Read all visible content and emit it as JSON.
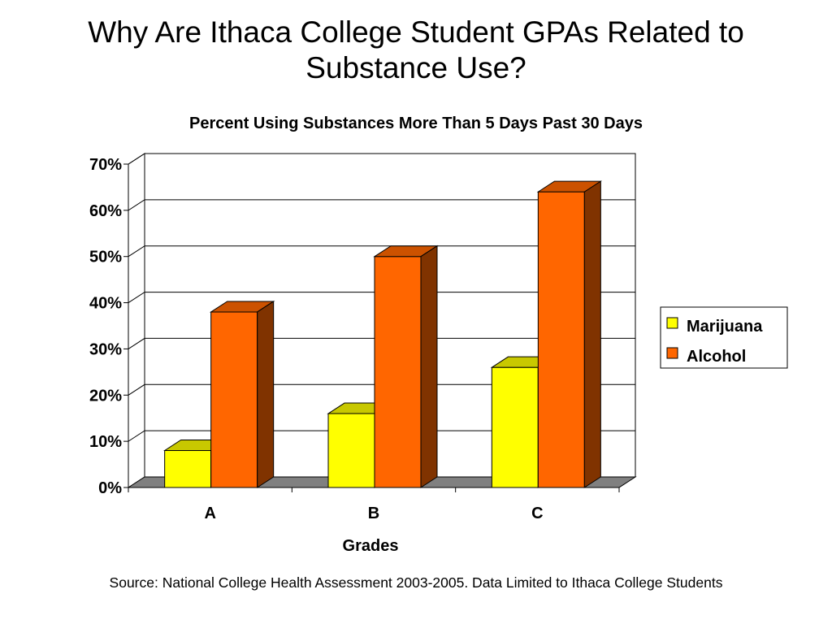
{
  "slide": {
    "title_line1": "Why Are Ithaca College Student GPAs Related to",
    "title_line2": "Substance Use?",
    "source": "Source: National College Health Assessment 2003-2005.  Data Limited to Ithaca College Students"
  },
  "colors": {
    "marijuana_front": "#ffff00",
    "marijuana_top": "#c8c800",
    "marijuana_side": "#9a9a00",
    "alcohol_front": "#ff6600",
    "alcohol_top": "#cc5200",
    "alcohol_side": "#803300",
    "floor": "#808080",
    "wall": "#ffffff"
  },
  "chart_data": {
    "type": "bar",
    "title": "Percent Using Substances More Than 5 Days Past 30 Days",
    "xlabel": "Grades",
    "ylabel": "",
    "categories": [
      "A",
      "B",
      "C"
    ],
    "series": [
      {
        "name": "Marijuana",
        "values": [
          8,
          16,
          26
        ]
      },
      {
        "name": "Alcohol",
        "values": [
          38,
          50,
          64
        ]
      }
    ],
    "ylim": [
      0,
      70
    ],
    "yticks": [
      "0%",
      "10%",
      "20%",
      "30%",
      "40%",
      "50%",
      "60%",
      "70%"
    ],
    "grid": true,
    "legend": "right",
    "style": "3d-clustered-column"
  }
}
